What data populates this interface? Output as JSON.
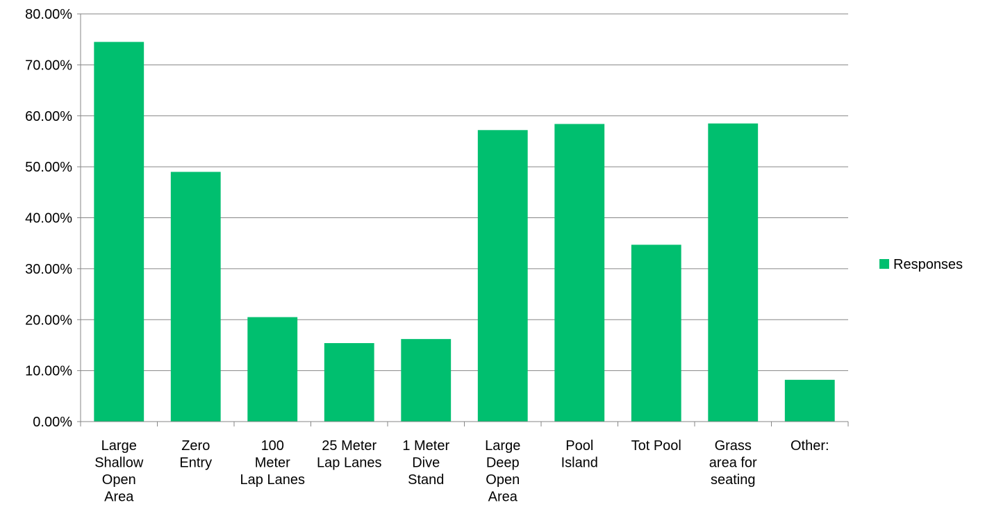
{
  "chart_data": {
    "type": "bar",
    "categories": [
      [
        "Large",
        "Shallow",
        "Open",
        "Area"
      ],
      [
        "Zero",
        "Entry"
      ],
      [
        "100",
        "Meter",
        "Lap Lanes"
      ],
      [
        "25 Meter",
        "Lap Lanes"
      ],
      [
        "1 Meter",
        "Dive",
        "Stand"
      ],
      [
        "Large",
        "Deep",
        "Open",
        "Area"
      ],
      [
        "Pool",
        "Island"
      ],
      [
        "Tot Pool"
      ],
      [
        "Grass",
        "area for",
        "seating"
      ],
      [
        "Other:"
      ]
    ],
    "series": [
      {
        "name": "Responses",
        "color": "#00bf6f",
        "values": [
          74.5,
          49.0,
          20.5,
          15.4,
          16.2,
          57.2,
          58.4,
          34.7,
          58.5,
          8.2
        ]
      }
    ],
    "y_ticks": [
      "0.00%",
      "10.00%",
      "20.00%",
      "30.00%",
      "40.00%",
      "50.00%",
      "60.00%",
      "70.00%",
      "80.00%"
    ],
    "ylim": [
      0,
      80
    ],
    "grid": true,
    "legend_position": "right"
  }
}
